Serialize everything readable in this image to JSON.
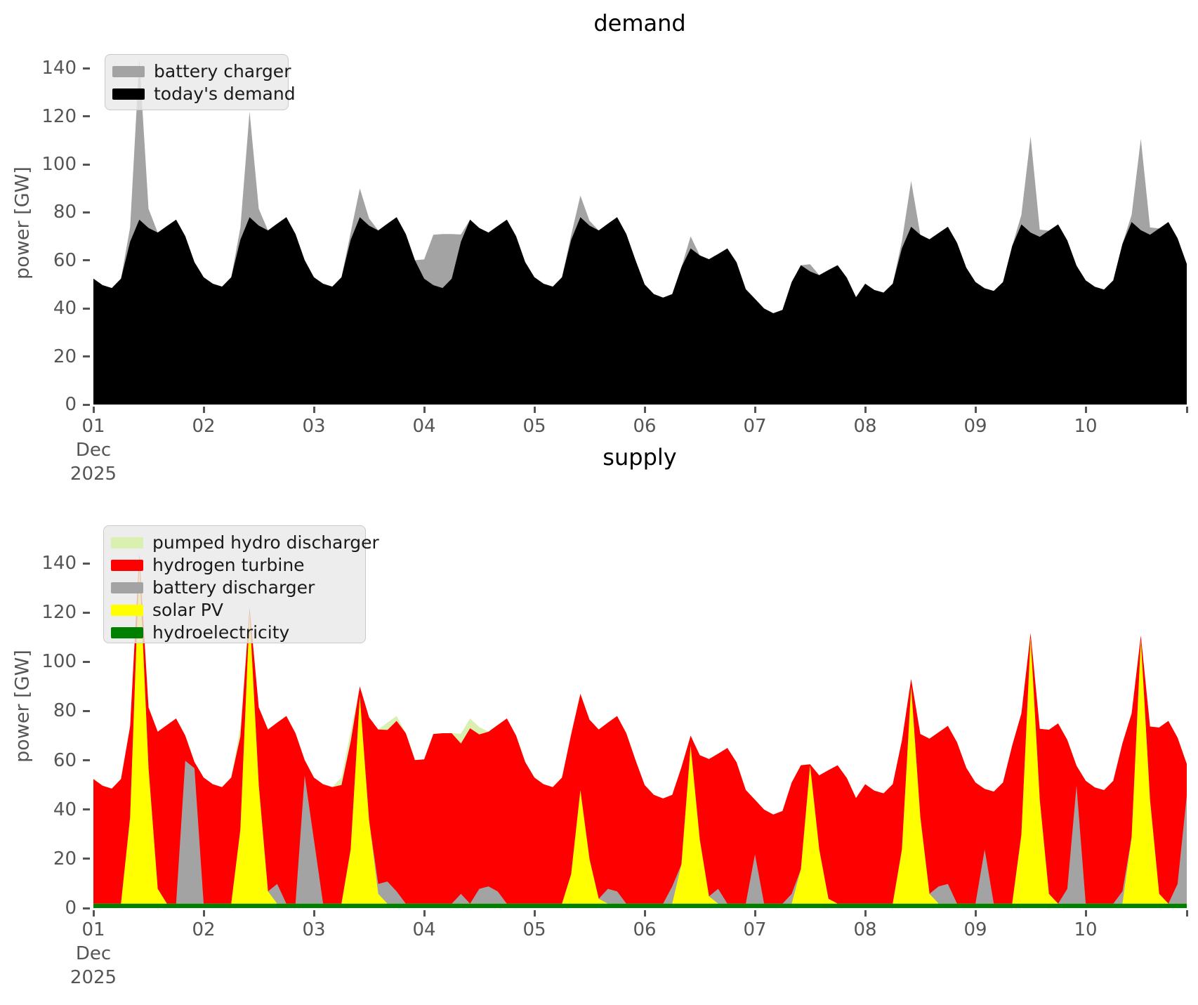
{
  "figure": {
    "background_color": "#ffffff",
    "tick_label_color": "#555555",
    "title_color": "#000000"
  },
  "chart_data": [
    {
      "type": "area",
      "stacked": true,
      "title": "demand",
      "ylabel": "power [GW]",
      "xlabel": "",
      "x_unit": "hours since 2025-12-01 00:00, 2-hour sampling",
      "x_tick_labels": [
        "01",
        "02",
        "03",
        "04",
        "05",
        "06",
        "07",
        "08",
        "09",
        "10"
      ],
      "x_first_tick_sublabels": [
        "Dec",
        "2025"
      ],
      "y_ticks": [
        0,
        20,
        40,
        60,
        80,
        100,
        120,
        140
      ],
      "ylim": [
        0,
        152
      ],
      "grid": false,
      "legend_position": "upper left",
      "legend": [
        {
          "label": "battery charger",
          "color": "#a3a3a3"
        },
        {
          "label": "today's demand",
          "color": "#000000"
        }
      ],
      "series": [
        {
          "name": "today's demand",
          "color": "#000000",
          "values": [
            52.4,
            49.7,
            48.5,
            52.4,
            67.8,
            77,
            73.5,
            71.6,
            74.3,
            77,
            70.1,
            59.3,
            53,
            50.3,
            49.1,
            53,
            68.6,
            78,
            74.5,
            72.5,
            75.3,
            78,
            71,
            60.1,
            53,
            50.3,
            49.1,
            53,
            68.6,
            78,
            74.5,
            72.5,
            75.3,
            78,
            71,
            60.1,
            52.4,
            49.7,
            48.5,
            52.4,
            67.8,
            77,
            73.5,
            71.6,
            74.3,
            77,
            70.1,
            59.3,
            53,
            50.3,
            49.1,
            53,
            68.6,
            78,
            74.5,
            72.5,
            75.3,
            78,
            71,
            60.1,
            50,
            46,
            44.5,
            46,
            57.2,
            65,
            62.1,
            60.5,
            62.7,
            65,
            59.2,
            48,
            44,
            40,
            38,
            39.4,
            51,
            58,
            55.4,
            53.9,
            56,
            58,
            52.8,
            44.7,
            50.3,
            47.7,
            46.6,
            50.3,
            65.1,
            74,
            70.7,
            68.8,
            71.4,
            74,
            67.3,
            57,
            51,
            48.4,
            47.3,
            51,
            66,
            75,
            71.6,
            69.8,
            72.4,
            75,
            68.3,
            57.8,
            51.7,
            49,
            47.9,
            51.7,
            66.9,
            76,
            72.6,
            70.7,
            73.3,
            76,
            69.2,
            58.5
          ]
        },
        {
          "name": "battery charger",
          "color": "#a3a3a3",
          "values": [
            0,
            0,
            0,
            0,
            6,
            67,
            8,
            0,
            0,
            0,
            0,
            0,
            0,
            0,
            0,
            0,
            5,
            44,
            7,
            0,
            0,
            0,
            0,
            0,
            0,
            0,
            0,
            0,
            3,
            12,
            3,
            0,
            0,
            0,
            0,
            0,
            8,
            21,
            22.5,
            18.6,
            3,
            0,
            0,
            0,
            0,
            0,
            0,
            0,
            0,
            0,
            0,
            0,
            2,
            9,
            2,
            0,
            0,
            0,
            0,
            0,
            0,
            0,
            0,
            0,
            0,
            5,
            0,
            0,
            0,
            0,
            0,
            0,
            0,
            0,
            0,
            0,
            0,
            0,
            3,
            0,
            0,
            0,
            0,
            0,
            0,
            0,
            0,
            0,
            3,
            19,
            0,
            0,
            0,
            0,
            0,
            0,
            0,
            0,
            0,
            0,
            0,
            4,
            40,
            3,
            0,
            0,
            0,
            0,
            0,
            0,
            0,
            0,
            0,
            3,
            38,
            3,
            0,
            0,
            0,
            0
          ]
        }
      ]
    },
    {
      "type": "area",
      "stacked": true,
      "title": "supply",
      "ylabel": "power [GW]",
      "xlabel": "",
      "x_unit": "hours since 2025-12-01 00:00, 2-hour sampling",
      "x_tick_labels": [
        "01",
        "02",
        "03",
        "04",
        "05",
        "06",
        "07",
        "08",
        "09",
        "10"
      ],
      "x_first_tick_sublabels": [
        "Dec",
        "2025"
      ],
      "y_ticks": [
        0,
        20,
        40,
        60,
        80,
        100,
        120,
        140
      ],
      "ylim": [
        0,
        164
      ],
      "grid": false,
      "legend_position": "upper left",
      "legend": [
        {
          "label": "pumped hydro discharger",
          "color": "#d9f0b0"
        },
        {
          "label": "hydrogen turbine",
          "color": "#ff0000"
        },
        {
          "label": "battery discharger",
          "color": "#a3a3a3"
        },
        {
          "label": "solar PV",
          "color": "#ffff00"
        },
        {
          "label": "hydroelectricity",
          "color": "#008000"
        }
      ],
      "stack_order_bottom_to_top": [
        "hydroelectricity",
        "solar PV",
        "battery discharger",
        "hydrogen turbine",
        "pumped hydro discharger"
      ],
      "series": [
        {
          "name": "hydroelectricity",
          "color": "#008000",
          "constant_value": 1.8
        },
        {
          "name": "solar PV",
          "color": "#ffff00",
          "values": [
            0,
            0,
            0,
            0,
            35,
            138,
            55,
            6,
            0,
            0,
            0,
            0,
            0,
            0,
            0,
            0,
            30,
            118,
            48,
            5,
            0,
            0,
            0,
            0,
            0,
            0,
            0,
            0,
            22,
            84,
            34,
            4,
            0,
            0,
            0,
            0,
            0,
            0,
            0,
            0,
            0,
            0,
            0,
            0,
            0,
            0,
            0,
            0,
            0,
            0,
            0,
            0,
            12,
            46,
            18,
            2,
            0,
            0,
            0,
            0,
            0,
            0,
            0,
            0,
            16,
            64,
            26,
            3,
            0,
            0,
            0,
            0,
            0,
            0,
            0,
            0,
            0,
            14,
            56,
            22,
            2,
            0,
            0,
            0,
            0,
            0,
            0,
            0,
            22,
            88,
            35,
            4,
            0,
            0,
            0,
            0,
            0,
            0,
            0,
            0,
            0,
            28,
            108,
            42,
            4,
            0,
            0,
            0,
            0,
            0,
            0,
            0,
            0,
            27,
            107,
            42,
            4,
            0,
            0,
            0
          ]
        },
        {
          "name": "battery discharger",
          "color": "#a3a3a3",
          "values": [
            0,
            0,
            0,
            0,
            0,
            0,
            0,
            0,
            0,
            0,
            58,
            55,
            0,
            0,
            0,
            0,
            0,
            0,
            0,
            0,
            8,
            0,
            0,
            52,
            26,
            0,
            0,
            0,
            0,
            0,
            0,
            4,
            9,
            5,
            0,
            0,
            0,
            0,
            0,
            0,
            4,
            0,
            6,
            7,
            5,
            0,
            0,
            0,
            0,
            0,
            0,
            0,
            0,
            0,
            0,
            0,
            6,
            5,
            0,
            0,
            0,
            0,
            0,
            7,
            0,
            0,
            0,
            0,
            6,
            0,
            0,
            0,
            20,
            0,
            0,
            0,
            4,
            0,
            0,
            0,
            0,
            0,
            0,
            0,
            0,
            0,
            0,
            0,
            0,
            0,
            0,
            0,
            7,
            8,
            0,
            0,
            0,
            22,
            0,
            0,
            0,
            0,
            0,
            0,
            0,
            0,
            6,
            48,
            0,
            0,
            0,
            0,
            5,
            0,
            0,
            0,
            0,
            0,
            8,
            44
          ]
        },
        {
          "name": "hydrogen turbine",
          "color": "#ff0000",
          "derived": "residual: equals (today's demand + battery charger) minus all other supply layers, clamped at 0"
        },
        {
          "name": "pumped hydro discharger",
          "color": "#d9f0b0",
          "values": [
            0,
            0,
            0,
            0,
            0,
            0,
            0,
            0,
            0,
            0,
            0,
            0,
            0,
            0,
            0,
            0,
            4,
            0,
            0,
            0,
            0,
            0,
            0,
            0,
            0,
            0,
            0,
            3,
            4,
            0,
            0,
            0,
            3,
            2,
            0,
            0,
            0,
            0,
            0,
            0,
            4,
            4,
            3,
            0,
            0,
            0,
            0,
            0,
            0,
            0,
            0,
            0,
            0,
            0,
            0,
            0,
            0,
            0,
            0,
            0,
            0,
            0,
            0,
            0,
            0,
            0,
            0,
            0,
            0,
            0,
            0,
            0,
            0,
            0,
            0,
            0,
            0,
            0,
            0,
            0,
            0,
            0,
            0,
            0,
            0,
            0,
            0,
            0,
            0,
            0,
            0,
            0,
            0,
            0,
            0,
            0,
            0,
            0,
            0,
            0,
            0,
            0,
            0,
            0,
            0,
            0,
            0,
            0,
            0,
            0,
            0,
            0,
            0,
            0,
            0,
            0,
            0,
            0,
            0,
            0
          ]
        }
      ]
    }
  ]
}
